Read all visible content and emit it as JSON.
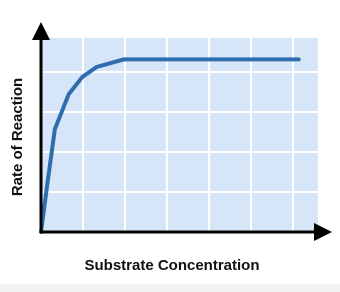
{
  "chart_data": {
    "type": "line",
    "xlabel": "Substrate Concentration",
    "ylabel": "Rate of Reaction",
    "x": [
      0,
      0.25,
      0.5,
      1,
      1.5,
      2,
      3,
      4,
      6,
      8,
      9.3
    ],
    "series": [
      {
        "color": "#2f6eae",
        "values": [
          0,
          2.7,
          5.3,
          7.1,
          8,
          8.5,
          8.9,
          8.9,
          8.9,
          8.9,
          8.9
        ]
      }
    ],
    "xlim": [
      0,
      10
    ],
    "ylim": [
      0,
      10
    ],
    "grid": true
  }
}
